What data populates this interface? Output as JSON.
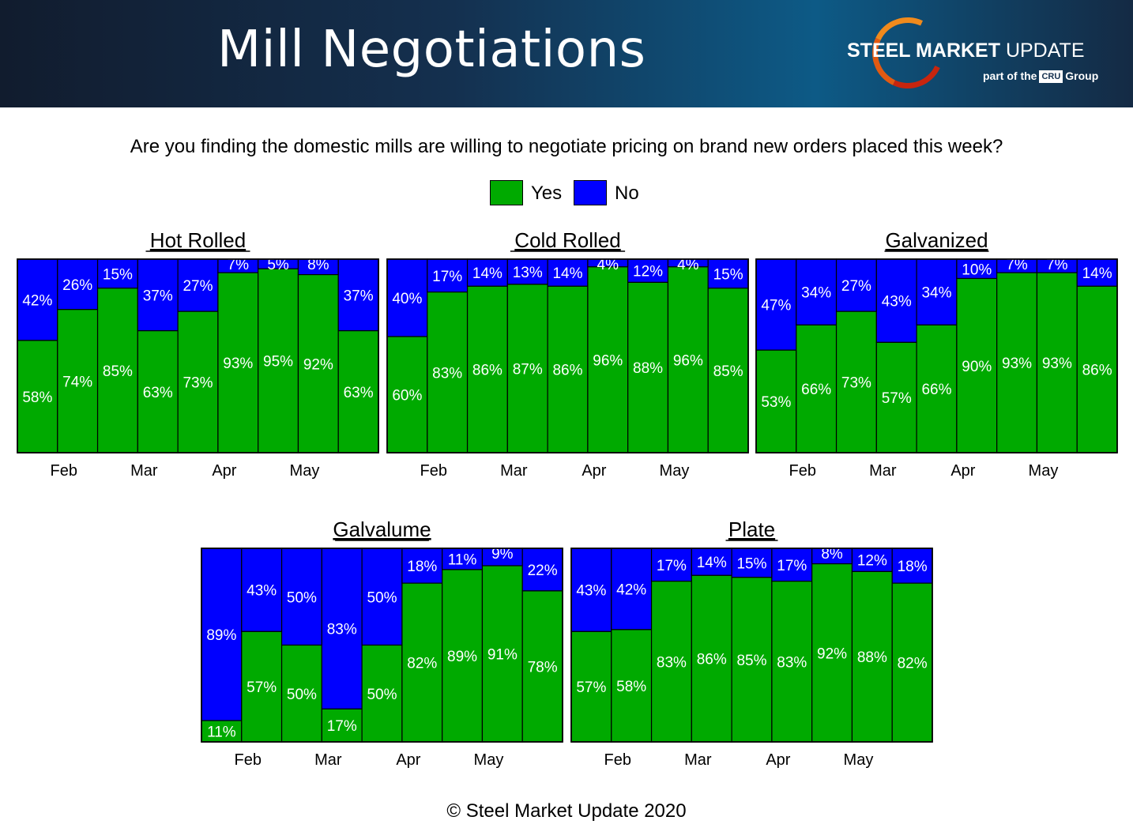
{
  "header": {
    "title": "Mill Negotiations",
    "logo_bold": "STEEL MARKET",
    "logo_thin": "UPDATE",
    "logo_sub_pre": "part of the",
    "logo_sub_cru": "CRU",
    "logo_sub_post": "Group"
  },
  "question": "Are you finding the domestic mills are willing to negotiate pricing on brand new orders placed this week?",
  "legend": {
    "yes_label": "Yes",
    "no_label": "No",
    "yes_color": "#00aa00",
    "no_color": "#0000ff"
  },
  "footer": "© Steel Market Update 2020",
  "chart_data": [
    {
      "type": "bar",
      "stacked": true,
      "title": "Hot Rolled",
      "month_labels": [
        "Feb",
        "Mar",
        "Apr",
        "May"
      ],
      "series": [
        {
          "name": "Yes",
          "values": [
            58,
            74,
            85,
            63,
            73,
            93,
            95,
            92,
            63
          ]
        },
        {
          "name": "No",
          "values": [
            42,
            26,
            15,
            37,
            27,
            7,
            5,
            8,
            37
          ]
        }
      ],
      "ylim": [
        0,
        100
      ]
    },
    {
      "type": "bar",
      "stacked": true,
      "title": "Cold Rolled",
      "month_labels": [
        "Feb",
        "Mar",
        "Apr",
        "May"
      ],
      "series": [
        {
          "name": "Yes",
          "values": [
            60,
            83,
            86,
            87,
            86,
            96,
            88,
            96,
            85
          ]
        },
        {
          "name": "No",
          "values": [
            40,
            17,
            14,
            13,
            14,
            4,
            12,
            4,
            15
          ]
        }
      ],
      "ylim": [
        0,
        100
      ]
    },
    {
      "type": "bar",
      "stacked": true,
      "title": "Galvanized",
      "month_labels": [
        "Feb",
        "Mar",
        "Apr",
        "May"
      ],
      "series": [
        {
          "name": "Yes",
          "values": [
            53,
            66,
            73,
            57,
            66,
            90,
            93,
            93,
            86
          ]
        },
        {
          "name": "No",
          "values": [
            47,
            34,
            27,
            43,
            34,
            10,
            7,
            7,
            14
          ]
        }
      ],
      "ylim": [
        0,
        100
      ]
    },
    {
      "type": "bar",
      "stacked": true,
      "title": "Galvalume",
      "month_labels": [
        "Feb",
        "Mar",
        "Apr",
        "May"
      ],
      "series": [
        {
          "name": "Yes",
          "values": [
            11,
            57,
            50,
            17,
            50,
            82,
            89,
            91,
            78
          ]
        },
        {
          "name": "No",
          "values": [
            89,
            43,
            50,
            83,
            50,
            18,
            11,
            9,
            22
          ]
        }
      ],
      "ylim": [
        0,
        100
      ]
    },
    {
      "type": "bar",
      "stacked": true,
      "title": "Plate",
      "month_labels": [
        "Feb",
        "Mar",
        "Apr",
        "May"
      ],
      "series": [
        {
          "name": "Yes",
          "values": [
            57,
            58,
            83,
            86,
            85,
            83,
            92,
            88,
            82
          ]
        },
        {
          "name": "No",
          "values": [
            43,
            42,
            17,
            14,
            15,
            17,
            8,
            12,
            18
          ]
        }
      ],
      "ylim": [
        0,
        100
      ]
    }
  ]
}
